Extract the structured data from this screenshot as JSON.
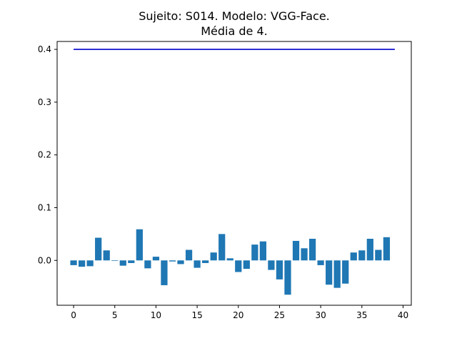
{
  "chart_data": {
    "type": "bar",
    "title_line1": "Sujeito: S014. Modelo: VGG-Face.",
    "title_line2": "Média de 4.",
    "xlabel": "",
    "ylabel": "",
    "xlim": [
      -2,
      41
    ],
    "ylim": [
      -0.085,
      0.415
    ],
    "x_ticks": [
      0,
      5,
      10,
      15,
      20,
      25,
      30,
      35,
      40
    ],
    "y_ticks": [
      0.0,
      0.1,
      0.2,
      0.3,
      0.4
    ],
    "y_tick_labels": [
      "0.0",
      "0.1",
      "0.2",
      "0.3",
      "0.4"
    ],
    "grid": false,
    "bar_color": "#1f77b4",
    "line_color": "#0000cd",
    "categories": [
      0,
      1,
      2,
      3,
      4,
      5,
      6,
      7,
      8,
      9,
      10,
      11,
      12,
      13,
      14,
      15,
      16,
      17,
      18,
      19,
      20,
      21,
      22,
      23,
      24,
      25,
      26,
      27,
      28,
      29,
      30,
      31,
      32,
      33,
      34,
      35,
      36,
      37,
      38,
      39
    ],
    "values": [
      -0.009,
      -0.012,
      -0.011,
      0.043,
      0.019,
      -0.001,
      -0.01,
      -0.005,
      0.059,
      -0.015,
      0.007,
      -0.047,
      -0.002,
      -0.007,
      0.02,
      -0.014,
      -0.005,
      0.015,
      0.05,
      0.004,
      -0.022,
      -0.016,
      0.03,
      0.036,
      -0.018,
      -0.036,
      -0.065,
      0.037,
      0.023,
      0.041,
      -0.009,
      -0.046,
      -0.052,
      -0.044,
      0.015,
      0.019,
      0.041,
      0.02,
      0.044,
      0.0
    ],
    "line": {
      "x": [
        0,
        39
      ],
      "y": [
        0.4,
        0.4
      ]
    }
  }
}
